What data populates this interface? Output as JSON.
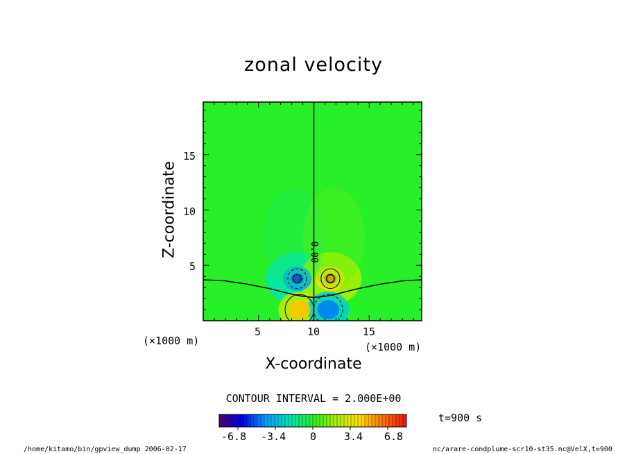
{
  "chart_data": {
    "type": "heatmap",
    "title": "zonal velocity",
    "xlabel": "X-coordinate",
    "ylabel": "Z-coordinate",
    "x_unit": "(×1000 m)",
    "y_unit": "(×1000 m)",
    "xlim": [
      0,
      19.75
    ],
    "ylim": [
      0,
      19.75
    ],
    "x_ticks": [
      5,
      10,
      15
    ],
    "y_ticks": [
      5,
      10,
      15
    ],
    "x_tick_labels": [
      "5",
      "10",
      "15"
    ],
    "y_tick_labels": [
      "5",
      "10",
      "15"
    ],
    "contour_label": "0.00",
    "contour_interval_text": "CONTOUR INTERVAL = 2.000E+00",
    "colorbar": {
      "min": -8.5,
      "max": 8.5,
      "tick_values": [
        -6.8,
        -3.4,
        0,
        3.4,
        6.8
      ],
      "tick_labels": [
        "-6.8",
        "-3.4",
        "0",
        "3.4",
        "6.8"
      ]
    },
    "features": [
      {
        "x": 8.5,
        "z": 3.8,
        "value": -6.5
      },
      {
        "x": 11.5,
        "z": 3.8,
        "value": 6.5
      },
      {
        "x": 8.7,
        "z": 1.0,
        "value": 4.6
      },
      {
        "x": 11.3,
        "z": 1.0,
        "value": -4.6
      }
    ],
    "grid": false,
    "time_text": "t=900 s",
    "footer_left": "/home/kitamo/bin/gpview_dump  2006-02-17",
    "footer_right": "nc/arare-condplume-scr10-st35.nc@VelX,t=900"
  }
}
